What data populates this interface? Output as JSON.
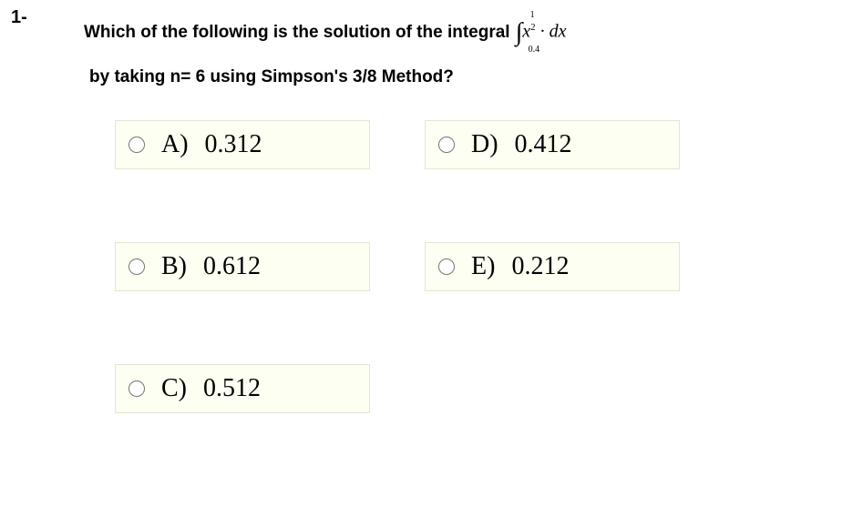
{
  "question": {
    "number": "1-",
    "text_part1": "Which of the following is the solution of the integral",
    "integral": {
      "upper": "1",
      "lower": "0.4",
      "integrand": "x",
      "exponent": "2",
      "suffix": " · dx"
    },
    "text_part2": "by taking n= 6 using Simpson's 3/8 Method?"
  },
  "options": {
    "a": {
      "letter": "A)",
      "value": "0.312"
    },
    "b": {
      "letter": "B)",
      "value": "0.612"
    },
    "c": {
      "letter": "C)",
      "value": "0.512"
    },
    "d": {
      "letter": "D)",
      "value": "0.412"
    },
    "e": {
      "letter": "E)",
      "value": "0.212"
    }
  },
  "styling": {
    "option_bg": "#fcfff2",
    "option_border": "#e5e5d5",
    "question_fontsize": 19,
    "option_fontsize": 28,
    "number_fontsize": 20
  }
}
